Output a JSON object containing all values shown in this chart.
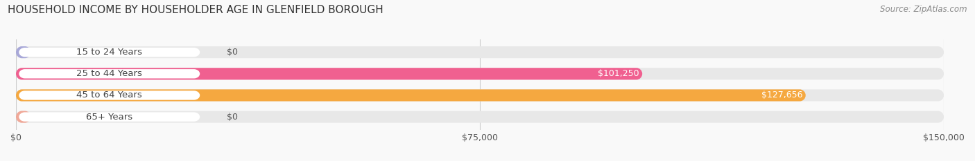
{
  "title": "HOUSEHOLD INCOME BY HOUSEHOLDER AGE IN GLENFIELD BOROUGH",
  "source": "Source: ZipAtlas.com",
  "categories": [
    "15 to 24 Years",
    "25 to 44 Years",
    "45 to 64 Years",
    "65+ Years"
  ],
  "values": [
    0,
    101250,
    127656,
    0
  ],
  "bar_colors": [
    "#a8a8d8",
    "#f06090",
    "#f5a840",
    "#f0a898"
  ],
  "label_colors": [
    "#555555",
    "#ffffff",
    "#ffffff",
    "#555555"
  ],
  "label_texts": [
    "$0",
    "$101,250",
    "$127,656",
    "$0"
  ],
  "xlim": [
    0,
    150000
  ],
  "xticks": [
    0,
    75000,
    150000
  ],
  "xticklabels": [
    "$0",
    "$75,000",
    "$150,000"
  ],
  "bar_height": 0.55,
  "figsize": [
    14.06,
    2.33
  ],
  "dpi": 100,
  "title_fontsize": 11,
  "source_fontsize": 8.5,
  "label_fontsize": 9,
  "ylabel_fontsize": 9.5,
  "tick_fontsize": 9,
  "background": "#f9f9f9",
  "bar_bg_color": "#e8e8e8",
  "pill_color": "#ffffff"
}
